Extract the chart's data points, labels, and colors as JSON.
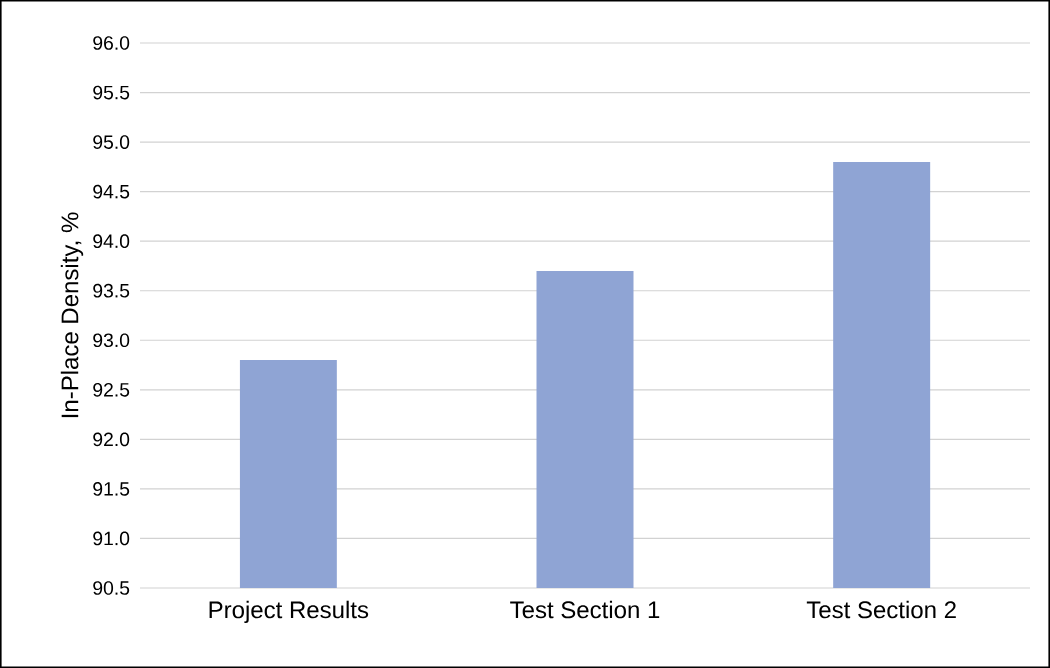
{
  "chart_data": {
    "type": "bar",
    "ylabel": "In-Place Density, %",
    "categories": [
      "Project Results",
      "Test Section 1",
      "Test Section 2"
    ],
    "values": [
      92.8,
      93.7,
      94.8
    ],
    "color": "#8fa4d4",
    "ylim": [
      90.5,
      96.0
    ],
    "yticks": [
      {
        "value": 90.5,
        "label": "90.5"
      },
      {
        "value": 91.0,
        "label": "91.0"
      },
      {
        "value": 91.5,
        "label": "91.5"
      },
      {
        "value": 92.0,
        "label": "92.0"
      },
      {
        "value": 92.5,
        "label": "92.5"
      },
      {
        "value": 93.0,
        "label": "93.0"
      },
      {
        "value": 93.5,
        "label": "93.5"
      },
      {
        "value": 94.0,
        "label": "94.0"
      },
      {
        "value": 94.5,
        "label": "94.5"
      },
      {
        "value": 95.0,
        "label": "95.0"
      },
      {
        "value": 95.5,
        "label": "95.5"
      },
      {
        "value": 96.0,
        "label": "96.0"
      }
    ],
    "grid": "y"
  }
}
